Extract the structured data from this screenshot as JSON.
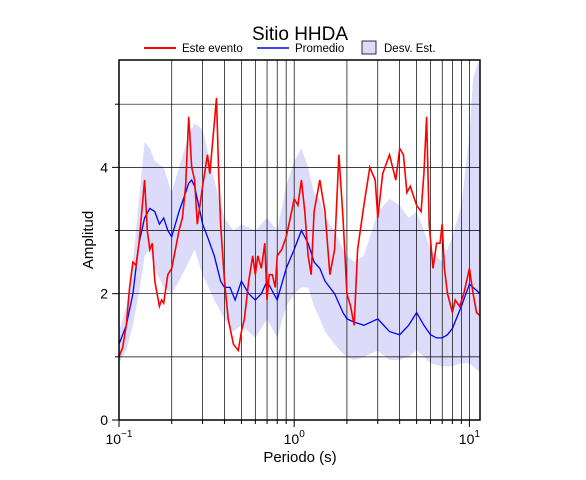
{
  "chart_data": {
    "type": "line",
    "title": "Sitio HHDA",
    "xlabel": "Periodo (s)",
    "ylabel": "Amplitud",
    "x_scale": "log",
    "xlim": [
      0.1,
      11.5
    ],
    "ylim": [
      0,
      5.7
    ],
    "grid": true,
    "legend_position": "top",
    "x_ticks": [
      {
        "value": 0.1,
        "base": "10",
        "exp": "−1"
      },
      {
        "value": 1,
        "base": "10",
        "exp": "0"
      },
      {
        "value": 10,
        "base": "10",
        "exp": "1"
      }
    ],
    "y_ticks": [
      0,
      2,
      4
    ],
    "legend": {
      "este_evento": "Este evento",
      "promedio": "Promedio",
      "desv_est": "Desv. Est."
    },
    "colors": {
      "este_evento": "#ff0000",
      "promedio": "#0000ff",
      "desv_band": "#dcdcfa"
    },
    "series": [
      {
        "name": "Este evento",
        "x": [
          0.1,
          0.105,
          0.11,
          0.115,
          0.12,
          0.125,
          0.13,
          0.135,
          0.14,
          0.145,
          0.15,
          0.155,
          0.16,
          0.17,
          0.175,
          0.18,
          0.19,
          0.2,
          0.21,
          0.22,
          0.23,
          0.24,
          0.25,
          0.26,
          0.27,
          0.28,
          0.3,
          0.32,
          0.33,
          0.35,
          0.36,
          0.37,
          0.38,
          0.4,
          0.42,
          0.45,
          0.48,
          0.5,
          0.52,
          0.55,
          0.58,
          0.6,
          0.62,
          0.65,
          0.68,
          0.7,
          0.72,
          0.75,
          0.78,
          0.8,
          0.85,
          0.9,
          0.95,
          1.0,
          1.05,
          1.1,
          1.15,
          1.2,
          1.25,
          1.3,
          1.4,
          1.5,
          1.6,
          1.7,
          1.8,
          1.9,
          1.95,
          2.0,
          2.1,
          2.2,
          2.3,
          2.5,
          2.7,
          2.9,
          3.0,
          3.2,
          3.5,
          3.8,
          4.0,
          4.2,
          4.4,
          4.6,
          5.0,
          5.3,
          5.5,
          5.7,
          5.9,
          6.2,
          6.5,
          6.8,
          7.0,
          7.2,
          7.5,
          8.0,
          8.3,
          8.8,
          9.3,
          10.0,
          10.5,
          11.0,
          11.5
        ],
        "y": [
          1.0,
          1.15,
          1.5,
          2.1,
          2.5,
          2.45,
          2.8,
          3.3,
          3.8,
          3.0,
          2.7,
          2.8,
          2.2,
          1.8,
          1.9,
          1.85,
          2.3,
          2.4,
          2.7,
          3.0,
          3.2,
          3.7,
          4.8,
          4.0,
          3.8,
          3.1,
          3.7,
          4.2,
          3.9,
          4.7,
          5.1,
          4.0,
          3.1,
          2.2,
          1.6,
          1.2,
          1.1,
          1.4,
          1.6,
          2.2,
          2.6,
          2.3,
          2.6,
          2.4,
          2.8,
          1.9,
          2.3,
          2.3,
          2.1,
          2.6,
          2.7,
          2.9,
          3.2,
          3.5,
          3.4,
          3.8,
          3.3,
          2.6,
          2.3,
          3.3,
          3.8,
          3.3,
          2.3,
          2.7,
          4.2,
          3.2,
          2.6,
          2.0,
          1.8,
          1.5,
          2.7,
          3.4,
          4.0,
          3.8,
          3.2,
          3.9,
          4.2,
          3.8,
          4.3,
          4.2,
          3.6,
          3.7,
          3.4,
          3.3,
          3.9,
          4.8,
          3.1,
          2.4,
          2.8,
          2.8,
          3.1,
          2.4,
          2.0,
          1.7,
          1.9,
          1.8,
          2.0,
          2.4,
          2.0,
          1.7,
          1.65
        ]
      },
      {
        "name": "Promedio",
        "x": [
          0.1,
          0.11,
          0.12,
          0.13,
          0.14,
          0.15,
          0.16,
          0.17,
          0.18,
          0.19,
          0.2,
          0.22,
          0.24,
          0.25,
          0.26,
          0.27,
          0.28,
          0.3,
          0.32,
          0.35,
          0.38,
          0.4,
          0.43,
          0.46,
          0.5,
          0.55,
          0.6,
          0.65,
          0.7,
          0.8,
          0.9,
          1.0,
          1.1,
          1.2,
          1.3,
          1.4,
          1.5,
          1.7,
          1.9,
          2.0,
          2.2,
          2.5,
          3.0,
          3.5,
          4.0,
          4.5,
          5.0,
          5.5,
          6.0,
          6.5,
          7.0,
          7.5,
          8.0,
          9.0,
          10.0,
          10.5,
          11.0,
          11.5
        ],
        "y": [
          1.2,
          1.5,
          2.0,
          2.8,
          3.2,
          3.35,
          3.3,
          3.1,
          3.2,
          3.0,
          2.9,
          3.3,
          3.6,
          3.75,
          3.8,
          3.7,
          3.5,
          3.1,
          2.9,
          2.6,
          2.2,
          2.1,
          2.1,
          1.9,
          2.2,
          2.0,
          1.9,
          2.0,
          2.2,
          1.9,
          2.4,
          2.7,
          3.0,
          2.8,
          2.5,
          2.4,
          2.2,
          2.0,
          1.7,
          1.6,
          1.55,
          1.5,
          1.6,
          1.4,
          1.35,
          1.5,
          1.7,
          1.5,
          1.35,
          1.3,
          1.3,
          1.35,
          1.45,
          1.8,
          2.15,
          2.1,
          2.05,
          2.0
        ]
      },
      {
        "name": "Desv. Est.",
        "x": [
          0.1,
          0.11,
          0.12,
          0.13,
          0.14,
          0.15,
          0.16,
          0.18,
          0.2,
          0.22,
          0.25,
          0.27,
          0.3,
          0.35,
          0.4,
          0.45,
          0.5,
          0.6,
          0.7,
          0.8,
          0.9,
          1.0,
          1.1,
          1.2,
          1.3,
          1.4,
          1.5,
          1.7,
          1.9,
          2.0,
          2.2,
          2.5,
          3.0,
          3.5,
          4.0,
          4.5,
          5.0,
          5.5,
          6.0,
          7.0,
          8.0,
          9.0,
          10.0,
          10.5,
          11.0,
          11.5
        ],
        "upper": [
          1.4,
          1.8,
          2.5,
          3.5,
          4.4,
          4.3,
          4.1,
          4.0,
          3.6,
          4.0,
          4.5,
          4.7,
          4.6,
          3.8,
          3.2,
          3.0,
          3.1,
          3.0,
          3.2,
          3.0,
          3.7,
          4.1,
          4.3,
          4.0,
          3.6,
          3.5,
          3.2,
          3.0,
          2.7,
          2.6,
          2.5,
          2.6,
          3.3,
          3.5,
          3.4,
          3.2,
          3.3,
          3.0,
          2.7,
          2.5,
          2.9,
          3.4,
          4.5,
          5.4,
          5.6,
          5.7
        ],
        "lower": [
          0.9,
          1.1,
          1.5,
          2.0,
          2.6,
          2.7,
          2.4,
          2.1,
          2.0,
          2.2,
          2.5,
          2.7,
          2.3,
          1.9,
          1.6,
          1.4,
          1.5,
          1.3,
          1.6,
          1.3,
          1.8,
          2.0,
          2.1,
          2.1,
          1.8,
          1.6,
          1.4,
          1.2,
          1.05,
          1.0,
          0.95,
          1.0,
          1.1,
          0.95,
          0.95,
          1.0,
          1.1,
          1.0,
          0.9,
          0.85,
          0.85,
          0.9,
          0.9,
          0.85,
          0.8,
          0.75
        ]
      }
    ]
  }
}
